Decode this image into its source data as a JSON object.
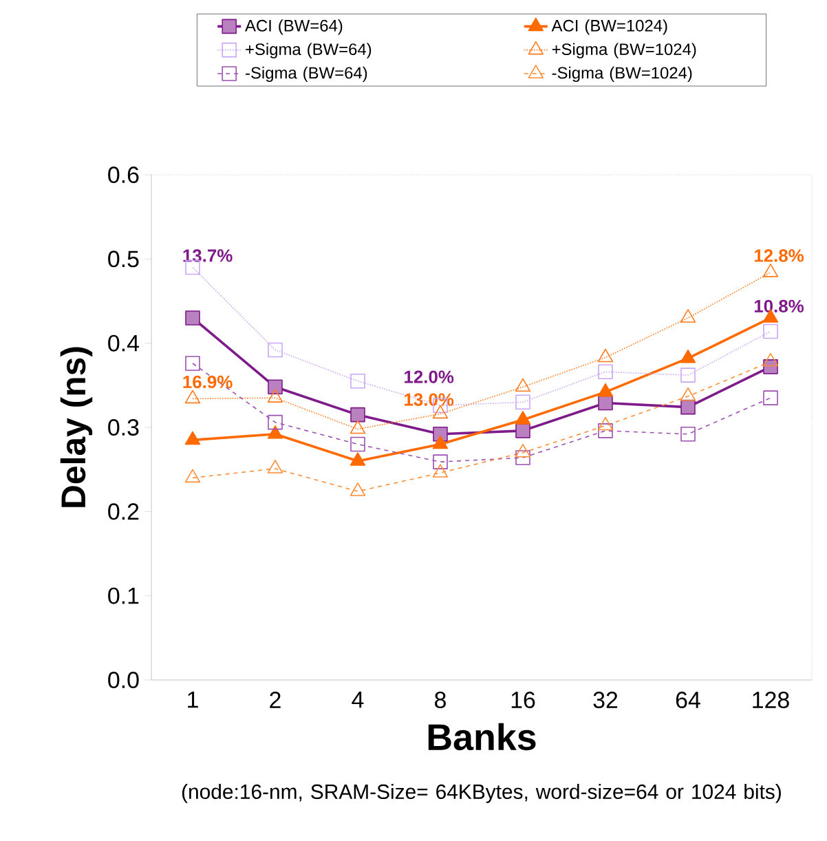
{
  "chart_data": {
    "type": "line",
    "xlabel": "Banks",
    "ylabel": "Delay (ns)",
    "categories": [
      "1",
      "2",
      "4",
      "8",
      "16",
      "32",
      "64",
      "128"
    ],
    "ylim": [
      0,
      0.6
    ],
    "yticks": [
      {
        "value": 0,
        "label": "0.0"
      },
      {
        "value": 0.1,
        "label": "0.1"
      },
      {
        "value": 0.2,
        "label": "0.2"
      },
      {
        "value": 0.3,
        "label": "0.3"
      },
      {
        "value": 0.4,
        "label": "0.4"
      },
      {
        "value": 0.5,
        "label": "0.5"
      },
      {
        "value": 0.6,
        "label": "0.6"
      }
    ],
    "grid": false,
    "legend": "top",
    "series": [
      {
        "name": "ACI (BW=64)",
        "color": "#7f1a8a",
        "marker": "square",
        "line_style": "solid",
        "values": [
          0.43,
          0.348,
          0.315,
          0.292,
          0.296,
          0.329,
          0.324,
          0.372
        ]
      },
      {
        "name": "ACI (BW=1024)",
        "color": "#ff6a00",
        "marker": "triangle",
        "line_style": "solid",
        "values": [
          0.285,
          0.292,
          0.26,
          0.28,
          0.309,
          0.342,
          0.382,
          0.43
        ]
      },
      {
        "name": "+Sigma (BW=64)",
        "color": "#c9a6f5",
        "marker": "square",
        "line_style": "dotted",
        "values": [
          0.49,
          0.392,
          0.355,
          0.326,
          0.33,
          0.366,
          0.362,
          0.414
        ]
      },
      {
        "name": "+Sigma (BW=1024)",
        "color": "#ff7a1a",
        "marker": "triangle",
        "line_style": "dotted",
        "values": [
          0.334,
          0.335,
          0.298,
          0.316,
          0.348,
          0.383,
          0.43,
          0.484
        ]
      },
      {
        "name": "-Sigma (BW=64)",
        "color": "#9b4fb0",
        "marker": "square",
        "line_style": "dashed",
        "values": [
          0.376,
          0.306,
          0.28,
          0.259,
          0.264,
          0.296,
          0.292,
          0.335
        ]
      },
      {
        "name": "-Sigma (BW=1024)",
        "color": "#ff8c33",
        "marker": "triangle",
        "line_style": "dashed",
        "values": [
          0.24,
          0.251,
          0.224,
          0.246,
          0.27,
          0.302,
          0.337,
          0.378
        ]
      }
    ],
    "annotations": [
      "13.7%",
      "16.9%",
      "12.0%",
      "13.0%",
      "12.8%",
      "10.8%",
      "(node:16-nm, SRAM-Size= 64KBytes, word-size=64 or 1024 bits)"
    ]
  }
}
